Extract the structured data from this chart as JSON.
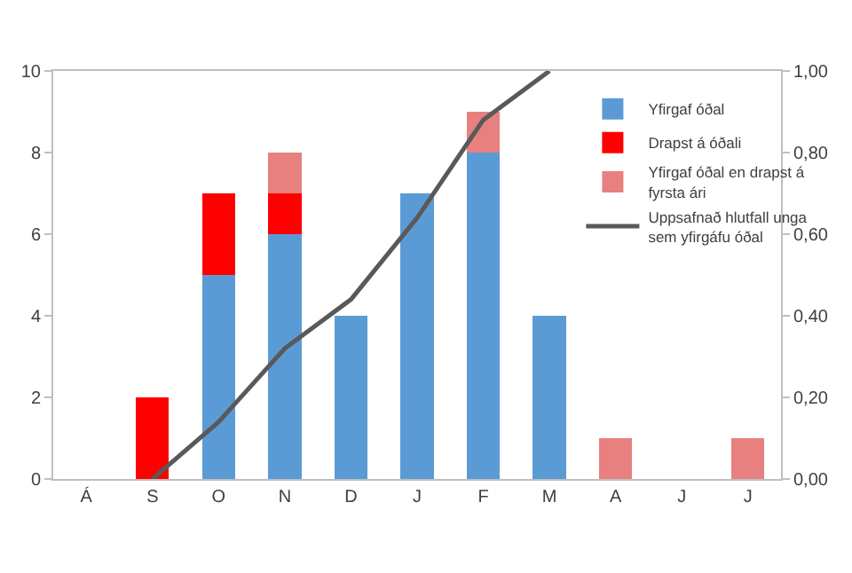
{
  "chart_data": {
    "type": "bar",
    "stacked": true,
    "legend": "right",
    "categories": [
      "Á",
      "S",
      "O",
      "N",
      "D",
      "J",
      "F",
      "M",
      "A",
      "J",
      "J"
    ],
    "series": [
      {
        "name": "Yfirgaf óðal",
        "color": "#5b9bd5",
        "values": [
          0,
          0,
          5,
          6,
          4,
          7,
          8,
          4,
          0,
          0,
          0
        ]
      },
      {
        "name": "Drapst á óðali",
        "color": "#ff0000",
        "values": [
          0,
          2,
          2,
          1,
          0,
          0,
          0,
          0,
          0,
          0,
          0
        ]
      },
      {
        "name": "Yfirgaf óðal en drapst á fyrsta ári",
        "color": "#e88080",
        "values": [
          0,
          0,
          0,
          1,
          0,
          0,
          1,
          0,
          1,
          0,
          1
        ]
      },
      {
        "name": "Uppsafnað hlutfall unga sem yfirgáfu óðal",
        "type": "line",
        "axis": "y2",
        "color": "#595959",
        "marker": "none",
        "line_style": "solid",
        "values": [
          null,
          0,
          0.14,
          0.32,
          0.44,
          0.64,
          0.88,
          1.0,
          null,
          null,
          null
        ]
      }
    ],
    "ylim": [
      0,
      10
    ],
    "yticks": [
      0,
      2,
      4,
      6,
      8,
      10
    ],
    "y2lim": [
      0,
      1
    ],
    "y2ticks": [
      {
        "value": 0,
        "label": "0,00"
      },
      {
        "value": 0.2,
        "label": "0,20"
      },
      {
        "value": 0.4,
        "label": "0,40"
      },
      {
        "value": 0.6,
        "label": "0,60"
      },
      {
        "value": 0.8,
        "label": "0,80"
      },
      {
        "value": 1,
        "label": "1,00"
      }
    ]
  }
}
